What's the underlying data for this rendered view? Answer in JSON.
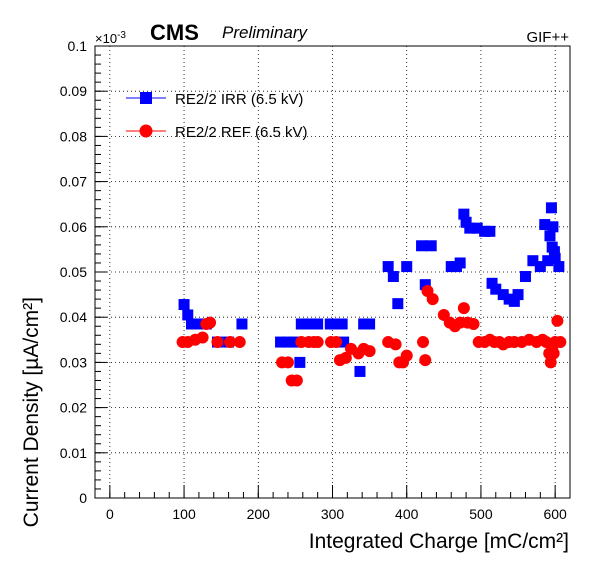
{
  "header": {
    "cms": "CMS",
    "preliminary": "Preliminary",
    "facility": "GIF++",
    "y_multiplier_base": "×10",
    "y_multiplier_exp": "-3"
  },
  "chart_data": {
    "type": "scatter",
    "xlabel": "Integrated Charge [mC/cm²]",
    "ylabel": "Current Density [µA/cm²]",
    "xlim": [
      -20,
      620
    ],
    "ylim": [
      0,
      0.1
    ],
    "x_ticks": [
      0,
      100,
      200,
      300,
      400,
      500,
      600
    ],
    "y_ticks": [
      0,
      0.01,
      0.02,
      0.03,
      0.04,
      0.05,
      0.06,
      0.07,
      0.08,
      0.09,
      0.1
    ],
    "grid": true,
    "legend_position": "top-left",
    "series": [
      {
        "name": "RE2/2 IRR (6.5 kV)",
        "marker": "square",
        "color": "#0000ff",
        "points": [
          [
            100,
            0.0428
          ],
          [
            105,
            0.0405
          ],
          [
            110,
            0.0385
          ],
          [
            118,
            0.0385
          ],
          [
            130,
            0.0385
          ],
          [
            145,
            0.0345
          ],
          [
            160,
            0.0345
          ],
          [
            178,
            0.0385
          ],
          [
            230,
            0.0345
          ],
          [
            240,
            0.0345
          ],
          [
            248,
            0.0345
          ],
          [
            256,
            0.03
          ],
          [
            258,
            0.0385
          ],
          [
            265,
            0.0385
          ],
          [
            272,
            0.0385
          ],
          [
            280,
            0.0385
          ],
          [
            297,
            0.0385
          ],
          [
            303,
            0.0385
          ],
          [
            313,
            0.0385
          ],
          [
            315,
            0.0345
          ],
          [
            337,
            0.028
          ],
          [
            342,
            0.0385
          ],
          [
            350,
            0.0385
          ],
          [
            375,
            0.0512
          ],
          [
            382,
            0.049
          ],
          [
            388,
            0.043
          ],
          [
            400,
            0.0512
          ],
          [
            420,
            0.0558
          ],
          [
            425,
            0.0472
          ],
          [
            433,
            0.0558
          ],
          [
            460,
            0.0512
          ],
          [
            467,
            0.0512
          ],
          [
            472,
            0.052
          ],
          [
            477,
            0.0628
          ],
          [
            480,
            0.061
          ],
          [
            485,
            0.0597
          ],
          [
            495,
            0.0597
          ],
          [
            505,
            0.059
          ],
          [
            512,
            0.059
          ],
          [
            515,
            0.0475
          ],
          [
            520,
            0.0462
          ],
          [
            530,
            0.045
          ],
          [
            538,
            0.044
          ],
          [
            545,
            0.0435
          ],
          [
            550,
            0.045
          ],
          [
            560,
            0.049
          ],
          [
            570,
            0.0525
          ],
          [
            580,
            0.0512
          ],
          [
            586,
            0.0605
          ],
          [
            590,
            0.0525
          ],
          [
            593,
            0.058
          ],
          [
            595,
            0.0642
          ],
          [
            596,
            0.0555
          ],
          [
            597,
            0.06
          ],
          [
            599,
            0.0545
          ],
          [
            600,
            0.053
          ],
          [
            605,
            0.0512
          ]
        ]
      },
      {
        "name": "RE2/2 REF (6.5 kV)",
        "marker": "circle",
        "color": "#ff0000",
        "points": [
          [
            98,
            0.0345
          ],
          [
            105,
            0.0345
          ],
          [
            115,
            0.035
          ],
          [
            125,
            0.0355
          ],
          [
            130,
            0.0385
          ],
          [
            135,
            0.0388
          ],
          [
            145,
            0.0345
          ],
          [
            162,
            0.0345
          ],
          [
            175,
            0.0345
          ],
          [
            232,
            0.03
          ],
          [
            240,
            0.03
          ],
          [
            245,
            0.026
          ],
          [
            252,
            0.026
          ],
          [
            258,
            0.0345
          ],
          [
            268,
            0.0345
          ],
          [
            275,
            0.0345
          ],
          [
            280,
            0.0345
          ],
          [
            298,
            0.0345
          ],
          [
            305,
            0.0345
          ],
          [
            310,
            0.0305
          ],
          [
            318,
            0.031
          ],
          [
            325,
            0.033
          ],
          [
            335,
            0.032
          ],
          [
            342,
            0.033
          ],
          [
            350,
            0.0325
          ],
          [
            375,
            0.0345
          ],
          [
            385,
            0.034
          ],
          [
            390,
            0.03
          ],
          [
            395,
            0.03
          ],
          [
            400,
            0.0315
          ],
          [
            422,
            0.0345
          ],
          [
            425,
            0.0305
          ],
          [
            428,
            0.0458
          ],
          [
            435,
            0.044
          ],
          [
            450,
            0.0405
          ],
          [
            458,
            0.0388
          ],
          [
            465,
            0.038
          ],
          [
            472,
            0.0388
          ],
          [
            477,
            0.042
          ],
          [
            482,
            0.0388
          ],
          [
            490,
            0.0385
          ],
          [
            497,
            0.0345
          ],
          [
            505,
            0.0345
          ],
          [
            512,
            0.035
          ],
          [
            518,
            0.0345
          ],
          [
            525,
            0.0345
          ],
          [
            530,
            0.034
          ],
          [
            538,
            0.0345
          ],
          [
            545,
            0.0345
          ],
          [
            555,
            0.0345
          ],
          [
            565,
            0.035
          ],
          [
            575,
            0.0345
          ],
          [
            583,
            0.035
          ],
          [
            588,
            0.0345
          ],
          [
            592,
            0.032
          ],
          [
            594,
            0.03
          ],
          [
            596,
            0.033
          ],
          [
            598,
            0.032
          ],
          [
            600,
            0.0345
          ],
          [
            603,
            0.0392
          ],
          [
            607,
            0.0345
          ]
        ]
      }
    ]
  }
}
